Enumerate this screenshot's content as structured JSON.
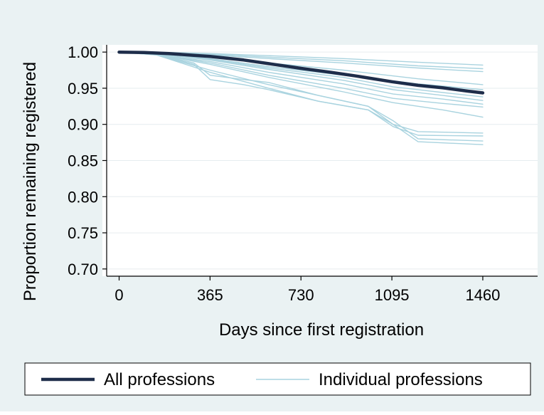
{
  "chart_data": {
    "type": "line",
    "xlabel": "Days since first registration",
    "ylabel": "Proportion remaining registered",
    "x_ticks": [
      0,
      365,
      730,
      1095,
      1460
    ],
    "y_ticks": [
      "0.70",
      "0.75",
      "0.80",
      "0.85",
      "0.90",
      "0.95",
      "1.00"
    ],
    "xlim": [
      -50,
      1680
    ],
    "ylim": [
      0.69,
      1.01
    ],
    "grid": true,
    "legend_position": "bottom",
    "legend": [
      {
        "label": "All professions",
        "color": "#1e2d4a"
      },
      {
        "label": "Individual professions",
        "color": "#a9d3df"
      }
    ],
    "series": [
      {
        "name": "All professions",
        "color": "#1e2d4a",
        "x": [
          0,
          100,
          200,
          300,
          365,
          500,
          600,
          730,
          850,
          950,
          1095,
          1200,
          1300,
          1400,
          1460
        ],
        "y": [
          1.0,
          0.9995,
          0.998,
          0.9955,
          0.994,
          0.989,
          0.984,
          0.9775,
          0.972,
          0.967,
          0.959,
          0.954,
          0.9505,
          0.946,
          0.9435
        ]
      },
      {
        "color": "#a9d3df",
        "x": [
          0,
          200,
          365,
          600,
          900,
          1200,
          1460
        ],
        "y": [
          1.0,
          0.9995,
          0.998,
          0.995,
          0.991,
          0.986,
          0.982
        ]
      },
      {
        "color": "#a9d3df",
        "x": [
          0,
          200,
          365,
          600,
          900,
          1200,
          1460
        ],
        "y": [
          1.0,
          0.999,
          0.997,
          0.993,
          0.988,
          0.981,
          0.977
        ]
      },
      {
        "color": "#a9d3df",
        "x": [
          0,
          200,
          365,
          600,
          900,
          1200,
          1460
        ],
        "y": [
          1.0,
          0.999,
          0.996,
          0.991,
          0.985,
          0.978,
          0.973
        ]
      },
      {
        "color": "#a9d3df",
        "x": [
          0,
          150,
          365,
          600,
          900,
          1200,
          1460
        ],
        "y": [
          1.0,
          0.999,
          0.993,
          0.985,
          0.975,
          0.963,
          0.955
        ]
      },
      {
        "color": "#a9d3df",
        "x": [
          0,
          150,
          365,
          600,
          900,
          1200,
          1460
        ],
        "y": [
          1.0,
          0.998,
          0.991,
          0.98,
          0.968,
          0.956,
          0.948
        ]
      },
      {
        "color": "#a9d3df",
        "x": [
          0,
          150,
          365,
          600,
          900,
          1100,
          1300,
          1460
        ],
        "y": [
          1.0,
          0.998,
          0.99,
          0.978,
          0.965,
          0.952,
          0.944,
          0.938
        ]
      },
      {
        "color": "#a9d3df",
        "x": [
          0,
          150,
          365,
          600,
          900,
          1100,
          1300,
          1460
        ],
        "y": [
          1.0,
          0.998,
          0.989,
          0.976,
          0.961,
          0.948,
          0.94,
          0.933
        ]
      },
      {
        "color": "#a9d3df",
        "x": [
          0,
          150,
          365,
          600,
          900,
          1100,
          1300,
          1460
        ],
        "y": [
          1.0,
          0.997,
          0.987,
          0.972,
          0.956,
          0.942,
          0.935,
          0.928
        ]
      },
      {
        "color": "#a9d3df",
        "x": [
          0,
          150,
          365,
          600,
          900,
          1100,
          1300,
          1460
        ],
        "y": [
          1.0,
          0.997,
          0.985,
          0.968,
          0.95,
          0.936,
          0.929,
          0.924
        ]
      },
      {
        "color": "#a9d3df",
        "x": [
          0,
          150,
          365,
          600,
          900,
          1100,
          1300,
          1460
        ],
        "y": [
          1.0,
          0.997,
          0.983,
          0.965,
          0.945,
          0.93,
          0.92,
          0.91
        ]
      },
      {
        "color": "#a9d3df",
        "x": [
          0,
          150,
          300,
          365,
          500,
          600,
          800,
          1000,
          1100,
          1200,
          1460
        ],
        "y": [
          1.0,
          0.997,
          0.985,
          0.968,
          0.962,
          0.958,
          0.94,
          0.925,
          0.9,
          0.89,
          0.888
        ]
      },
      {
        "color": "#a9d3df",
        "x": [
          0,
          150,
          300,
          365,
          500,
          600,
          800,
          1000,
          1100,
          1200,
          1460
        ],
        "y": [
          1.0,
          0.997,
          0.983,
          0.962,
          0.955,
          0.948,
          0.932,
          0.92,
          0.897,
          0.885,
          0.884
        ]
      },
      {
        "color": "#a9d3df",
        "x": [
          0,
          150,
          365,
          600,
          800,
          1000,
          1100,
          1200,
          1460
        ],
        "y": [
          1.0,
          0.996,
          0.975,
          0.955,
          0.94,
          0.925,
          0.905,
          0.88,
          0.877
        ]
      },
      {
        "color": "#a9d3df",
        "x": [
          0,
          150,
          365,
          600,
          800,
          1000,
          1100,
          1200,
          1460
        ],
        "y": [
          1.0,
          0.996,
          0.972,
          0.95,
          0.932,
          0.92,
          0.9,
          0.876,
          0.872
        ]
      }
    ]
  }
}
